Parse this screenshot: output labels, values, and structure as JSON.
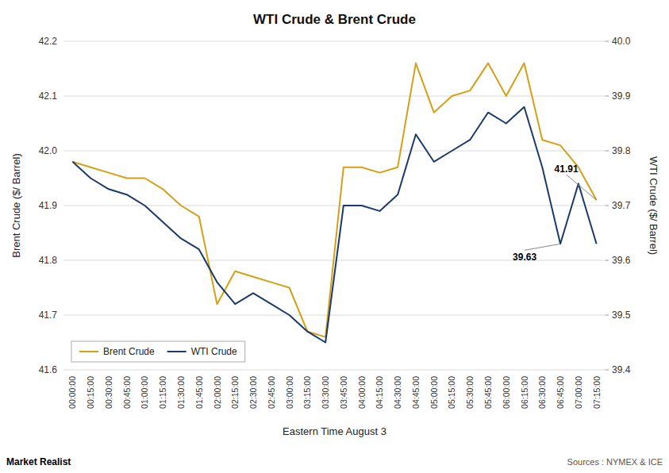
{
  "chart_data": {
    "type": "line",
    "title": "WTI Crude & Brent Crude",
    "x_label": "Eastern Time August 3",
    "y_label": "Brent Crude ($/ Barrel)",
    "y2_label": "WTI Crude ($/ Barrel)",
    "source": "Sources : NYMEX & ICE",
    "watermark": "Market Realist",
    "categories": [
      "00:00:00",
      "00:15:00",
      "00:30:00",
      "00:45:00",
      "01:00:00",
      "01:15:00",
      "01:30:00",
      "01:45:00",
      "02:00:00",
      "02:15:00",
      "02:30:00",
      "02:45:00",
      "03:00:00",
      "03:15:00",
      "03:30:00",
      "03:45:00",
      "04:00:00",
      "04:15:00",
      "04:30:00",
      "04:45:00",
      "05:00:00",
      "05:15:00",
      "05:30:00",
      "05:45:00",
      "06:00:00",
      "06:15:00",
      "06:30:00",
      "06:45:00",
      "07:00:00",
      "07:15:00"
    ],
    "series": [
      {
        "name": "Brent Crude",
        "color": "#D4A017",
        "values": [
          41.98,
          41.97,
          41.96,
          41.95,
          41.95,
          41.93,
          41.9,
          41.88,
          41.72,
          41.78,
          41.77,
          41.76,
          41.75,
          41.67,
          41.66,
          41.97,
          41.97,
          41.96,
          41.97,
          42.16,
          42.07,
          42.1,
          42.11,
          42.16,
          42.1,
          42.16,
          42.02,
          42.01,
          41.97,
          41.91
        ]
      },
      {
        "name": "WTI Crude",
        "color": "#1A3A6B",
        "axis": "y2",
        "values": [
          39.78,
          39.75,
          39.73,
          39.72,
          39.7,
          39.67,
          39.64,
          39.62,
          39.56,
          39.52,
          39.54,
          39.52,
          39.5,
          39.47,
          39.45,
          39.7,
          39.7,
          39.69,
          39.72,
          39.83,
          39.78,
          39.8,
          39.82,
          39.87,
          39.85,
          39.88,
          39.77,
          39.63,
          39.74,
          39.63
        ]
      }
    ],
    "ylim": [
      41.6,
      42.2
    ],
    "yticks": [
      41.6,
      41.7,
      41.8,
      41.9,
      {
        "value": 42,
        "label": "42.0"
      },
      42.1,
      42.2
    ],
    "y2lim": [
      39.4,
      40.0
    ],
    "y2ticks": [
      39.4,
      39.5,
      39.6,
      39.7,
      39.8,
      39.9,
      {
        "value": 40,
        "label": "40.0"
      }
    ],
    "grid": true,
    "legend": "lower left",
    "annotations": [
      {
        "text": "41.91",
        "x": "07:15:00",
        "y": 41.91,
        "axis": "y"
      },
      {
        "text": "39.63",
        "x": "06:45:00",
        "y": 39.63,
        "axis": "y2"
      }
    ]
  }
}
